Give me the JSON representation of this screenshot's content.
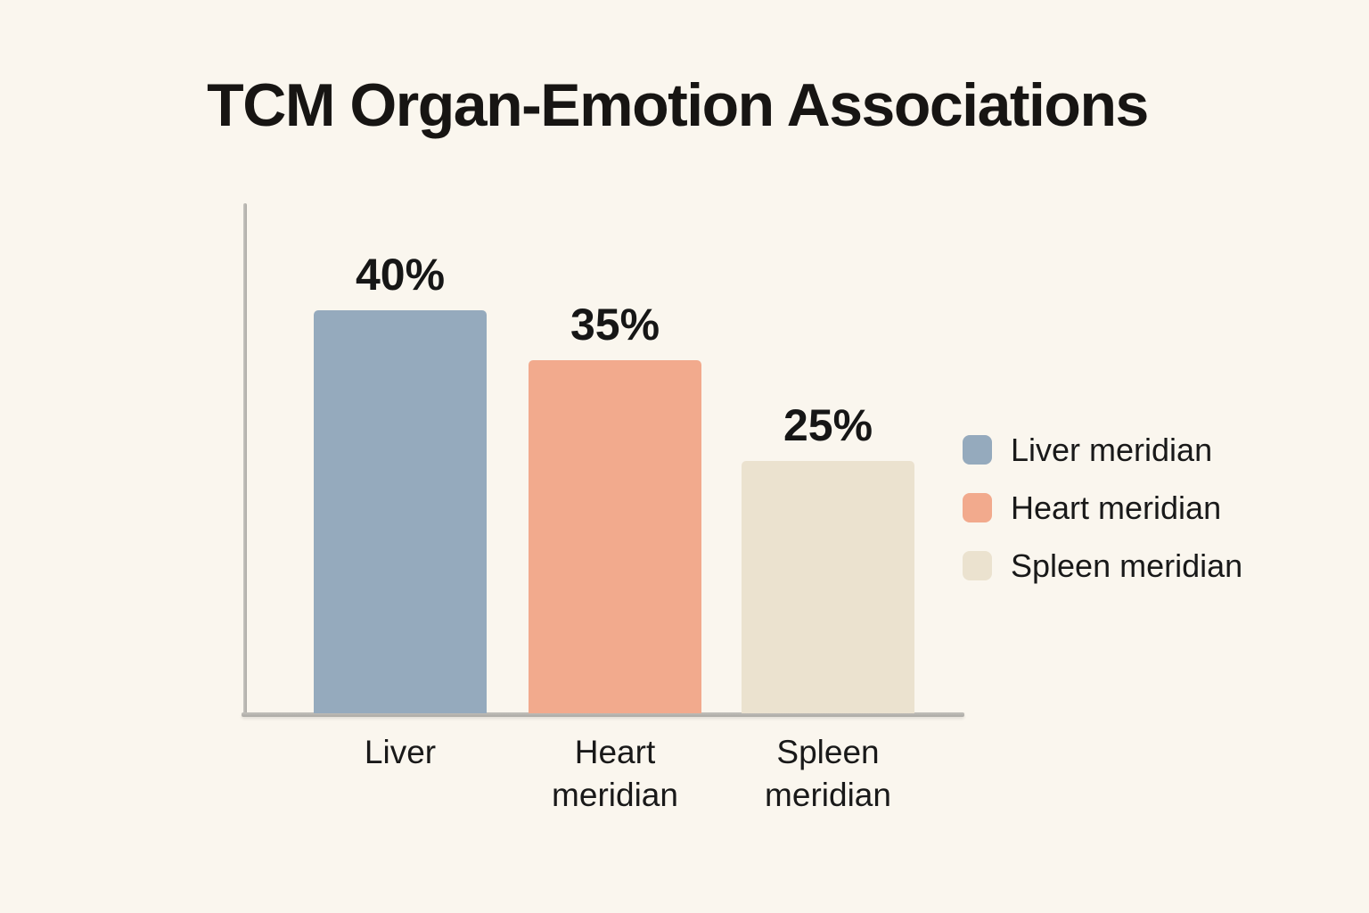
{
  "title": "TCM Organ-Emotion Associations",
  "colors": {
    "background": "#faf6ee",
    "axis": "#b4b2ad",
    "text": "#171717",
    "liver_blue": "#95aabd",
    "heart_salmon": "#f2aa8d",
    "spleen_cream": "#ebe2cf"
  },
  "chart_data": {
    "type": "bar",
    "title": "TCM Organ-Emotion Associations",
    "categories": [
      "Liver",
      "Heart meridian",
      "Spleen meridian"
    ],
    "values": [
      40,
      35,
      25
    ],
    "value_labels": [
      "40%",
      "35%",
      "25%"
    ],
    "unit": "%",
    "xlabel": "",
    "ylabel": "",
    "ylim": [
      0,
      40
    ],
    "grid": false,
    "axis_ticks_visible": false,
    "legend_position": "right",
    "series": [
      {
        "name": "Liver meridian",
        "value": 40,
        "color": "#95aabd"
      },
      {
        "name": "Heart meridian",
        "value": 35,
        "color": "#f2aa8d"
      },
      {
        "name": "Spleen meridian",
        "value": 25,
        "color": "#ebe2cf"
      }
    ]
  }
}
